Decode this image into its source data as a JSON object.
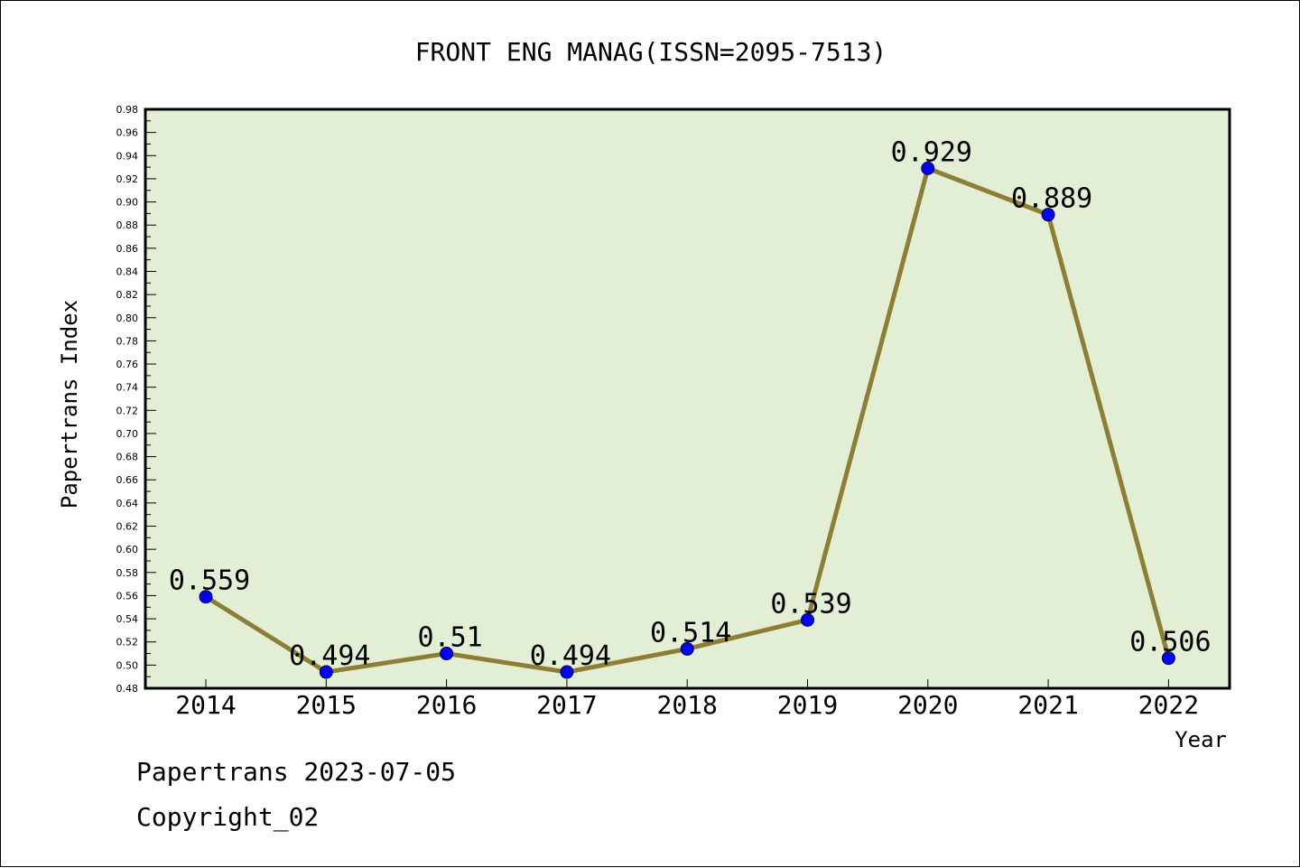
{
  "chart_data": {
    "type": "line",
    "title": "FRONT ENG MANAG(ISSN=2095-7513)",
    "xlabel": "Year",
    "ylabel": "Papertrans Index",
    "categories": [
      "2014",
      "2015",
      "2016",
      "2017",
      "2018",
      "2019",
      "2020",
      "2021",
      "2022"
    ],
    "values": [
      0.559,
      0.494,
      0.51,
      0.494,
      0.514,
      0.539,
      0.929,
      0.889,
      0.506
    ],
    "data_labels": [
      "0.559",
      "0.494",
      "0.51",
      "0.494",
      "0.514",
      "0.539",
      "0.929",
      "0.889",
      "0.506"
    ],
    "ylim": [
      0.48,
      0.98
    ],
    "yticks": [
      "0.48",
      "0.50",
      "0.52",
      "0.54",
      "0.56",
      "0.58",
      "0.60",
      "0.62",
      "0.64",
      "0.66",
      "0.68",
      "0.70",
      "0.72",
      "0.74",
      "0.76",
      "0.78",
      "0.80",
      "0.82",
      "0.84",
      "0.86",
      "0.88",
      "0.90",
      "0.92",
      "0.94",
      "0.96",
      "0.98"
    ],
    "grid": false,
    "legend": "none"
  },
  "footer": {
    "line1": "Papertrans 2023-07-05",
    "line2": "Copyright_02"
  },
  "colors": {
    "plot_background": "#e2efd5",
    "line": "#8c7e34",
    "marker": "#0000ff",
    "axis": "#000000"
  }
}
